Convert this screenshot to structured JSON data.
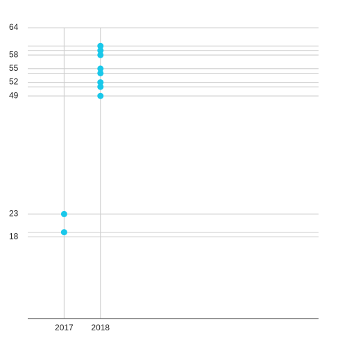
{
  "chart_data": {
    "type": "scatter",
    "x": [
      2017,
      2017,
      2018,
      2018,
      2018,
      2018,
      2018,
      2018,
      2018,
      2018
    ],
    "values": [
      23,
      19,
      60,
      59,
      58,
      55,
      54,
      52,
      51,
      49
    ],
    "color": "#19c8ea",
    "xlim": [
      2016,
      2024
    ],
    "xticks": [
      2017,
      2018
    ],
    "ylim": [
      0,
      64
    ],
    "yticks": [
      64,
      58,
      55,
      52,
      49,
      23,
      18
    ],
    "grid": true,
    "value_grid": true
  }
}
